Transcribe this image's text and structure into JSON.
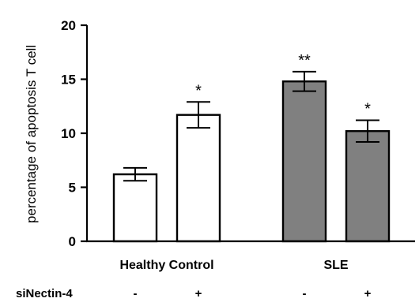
{
  "chart_data": {
    "type": "bar",
    "ylabel": "percentage of apoptosis T cell",
    "ylim": [
      0,
      20
    ],
    "yticks": [
      0,
      5,
      10,
      15,
      20
    ],
    "grid": false,
    "groups": [
      {
        "label": "Healthy Control",
        "bars": [
          0,
          1
        ]
      },
      {
        "label": "SLE",
        "bars": [
          2,
          3
        ]
      }
    ],
    "condition_label": "siNectin-4",
    "bars": [
      {
        "group": "Healthy Control",
        "condition": "-",
        "value": 6.2,
        "error": 0.6,
        "significance": "",
        "fill": "#ffffff"
      },
      {
        "group": "Healthy Control",
        "condition": "+",
        "value": 11.7,
        "error": 1.2,
        "significance": "*",
        "fill": "#ffffff"
      },
      {
        "group": "SLE",
        "condition": "-",
        "value": 14.8,
        "error": 0.9,
        "significance": "**",
        "fill": "#808080"
      },
      {
        "group": "SLE",
        "condition": "+",
        "value": 10.2,
        "error": 1.0,
        "significance": "*",
        "fill": "#808080"
      }
    ]
  }
}
